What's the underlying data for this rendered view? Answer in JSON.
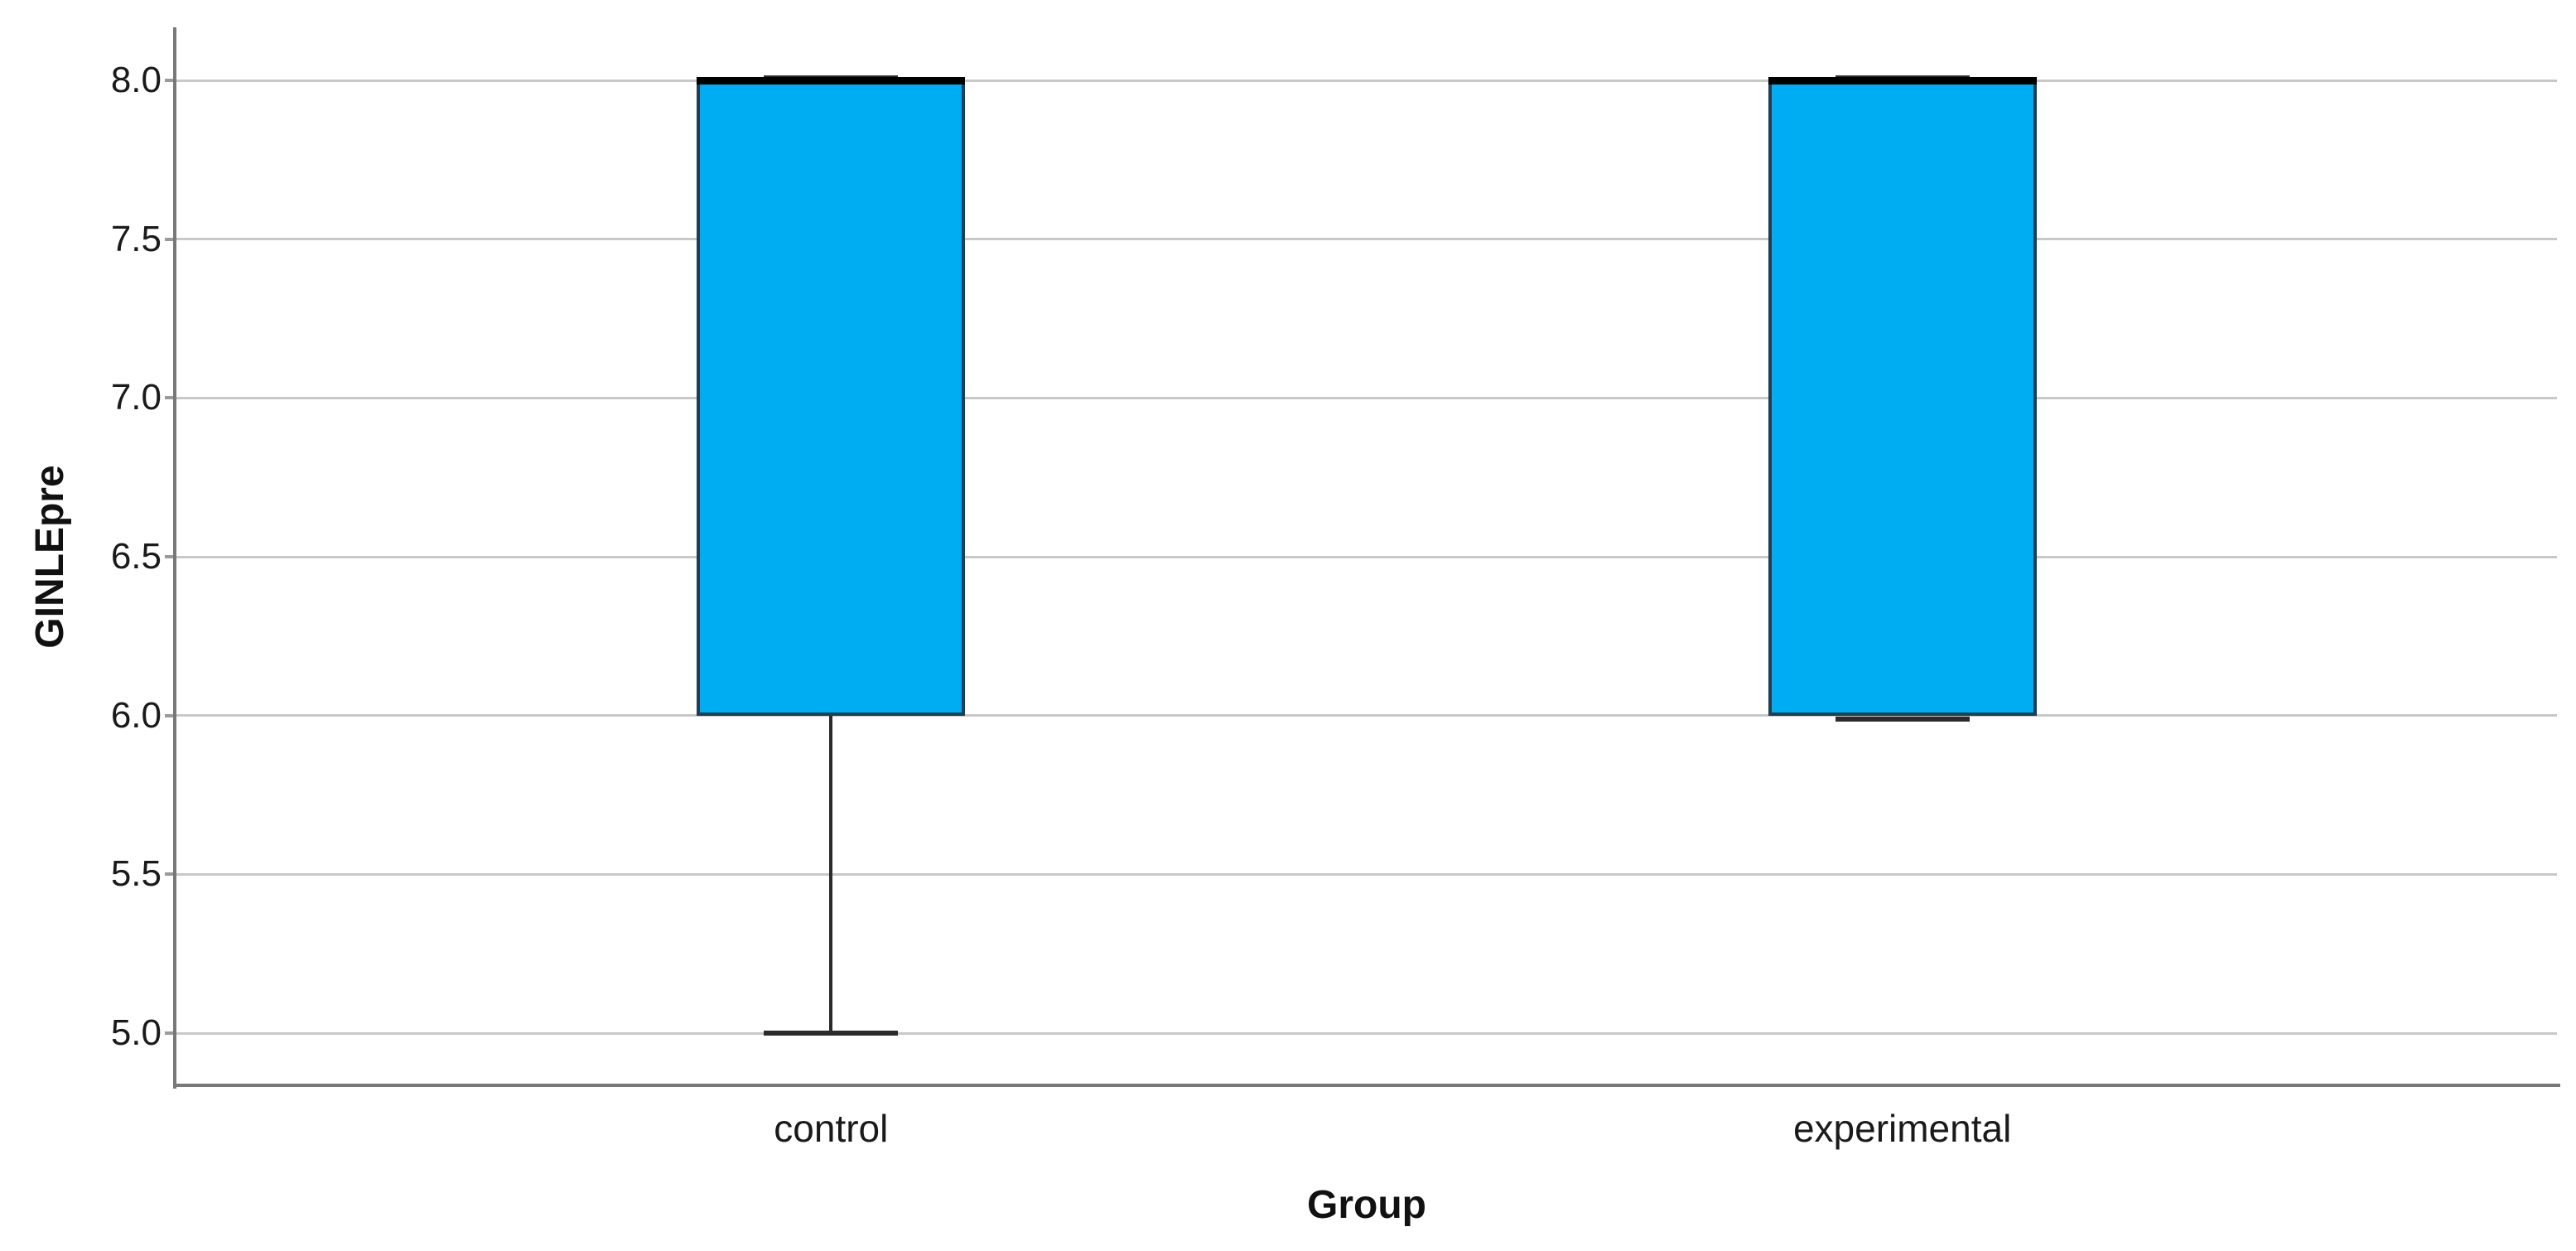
{
  "chart_data": {
    "type": "boxplot",
    "title": "",
    "xlabel": "Group",
    "ylabel": "GINLEpre",
    "categories": [
      "control",
      "experimental"
    ],
    "series": [
      {
        "category": "control",
        "min": 5.0,
        "q1": 6.0,
        "median": 8.0,
        "q3": 8.0,
        "max": 8.0
      },
      {
        "category": "experimental",
        "min": 6.0,
        "q1": 6.0,
        "median": 8.0,
        "q3": 8.0,
        "max": 8.0
      }
    ],
    "yticks": [
      8.0,
      7.5,
      7.0,
      6.5,
      6.0,
      5.5,
      5.0
    ],
    "ytick_labels": [
      "8.0",
      "7.5",
      "7.0",
      "6.5",
      "6.0",
      "5.5",
      "5.0"
    ],
    "ylim": [
      4.836,
      8.167
    ],
    "grid": true,
    "legend": "none",
    "layout": {
      "category_positions": [
        0.275,
        0.725
      ],
      "box_width_frac": 0.1127,
      "cap_width_frac": 0.0563
    },
    "colors": {
      "box_fill": "#00ACF2",
      "box_border": "#1d3f55",
      "median": "#000000",
      "whisker": "#2b2b2b",
      "gridline": "#c8c8c8",
      "axis": "#787878",
      "tick": "#9a9a9a",
      "text": "#1a1a1a",
      "background": "#ffffff"
    }
  }
}
